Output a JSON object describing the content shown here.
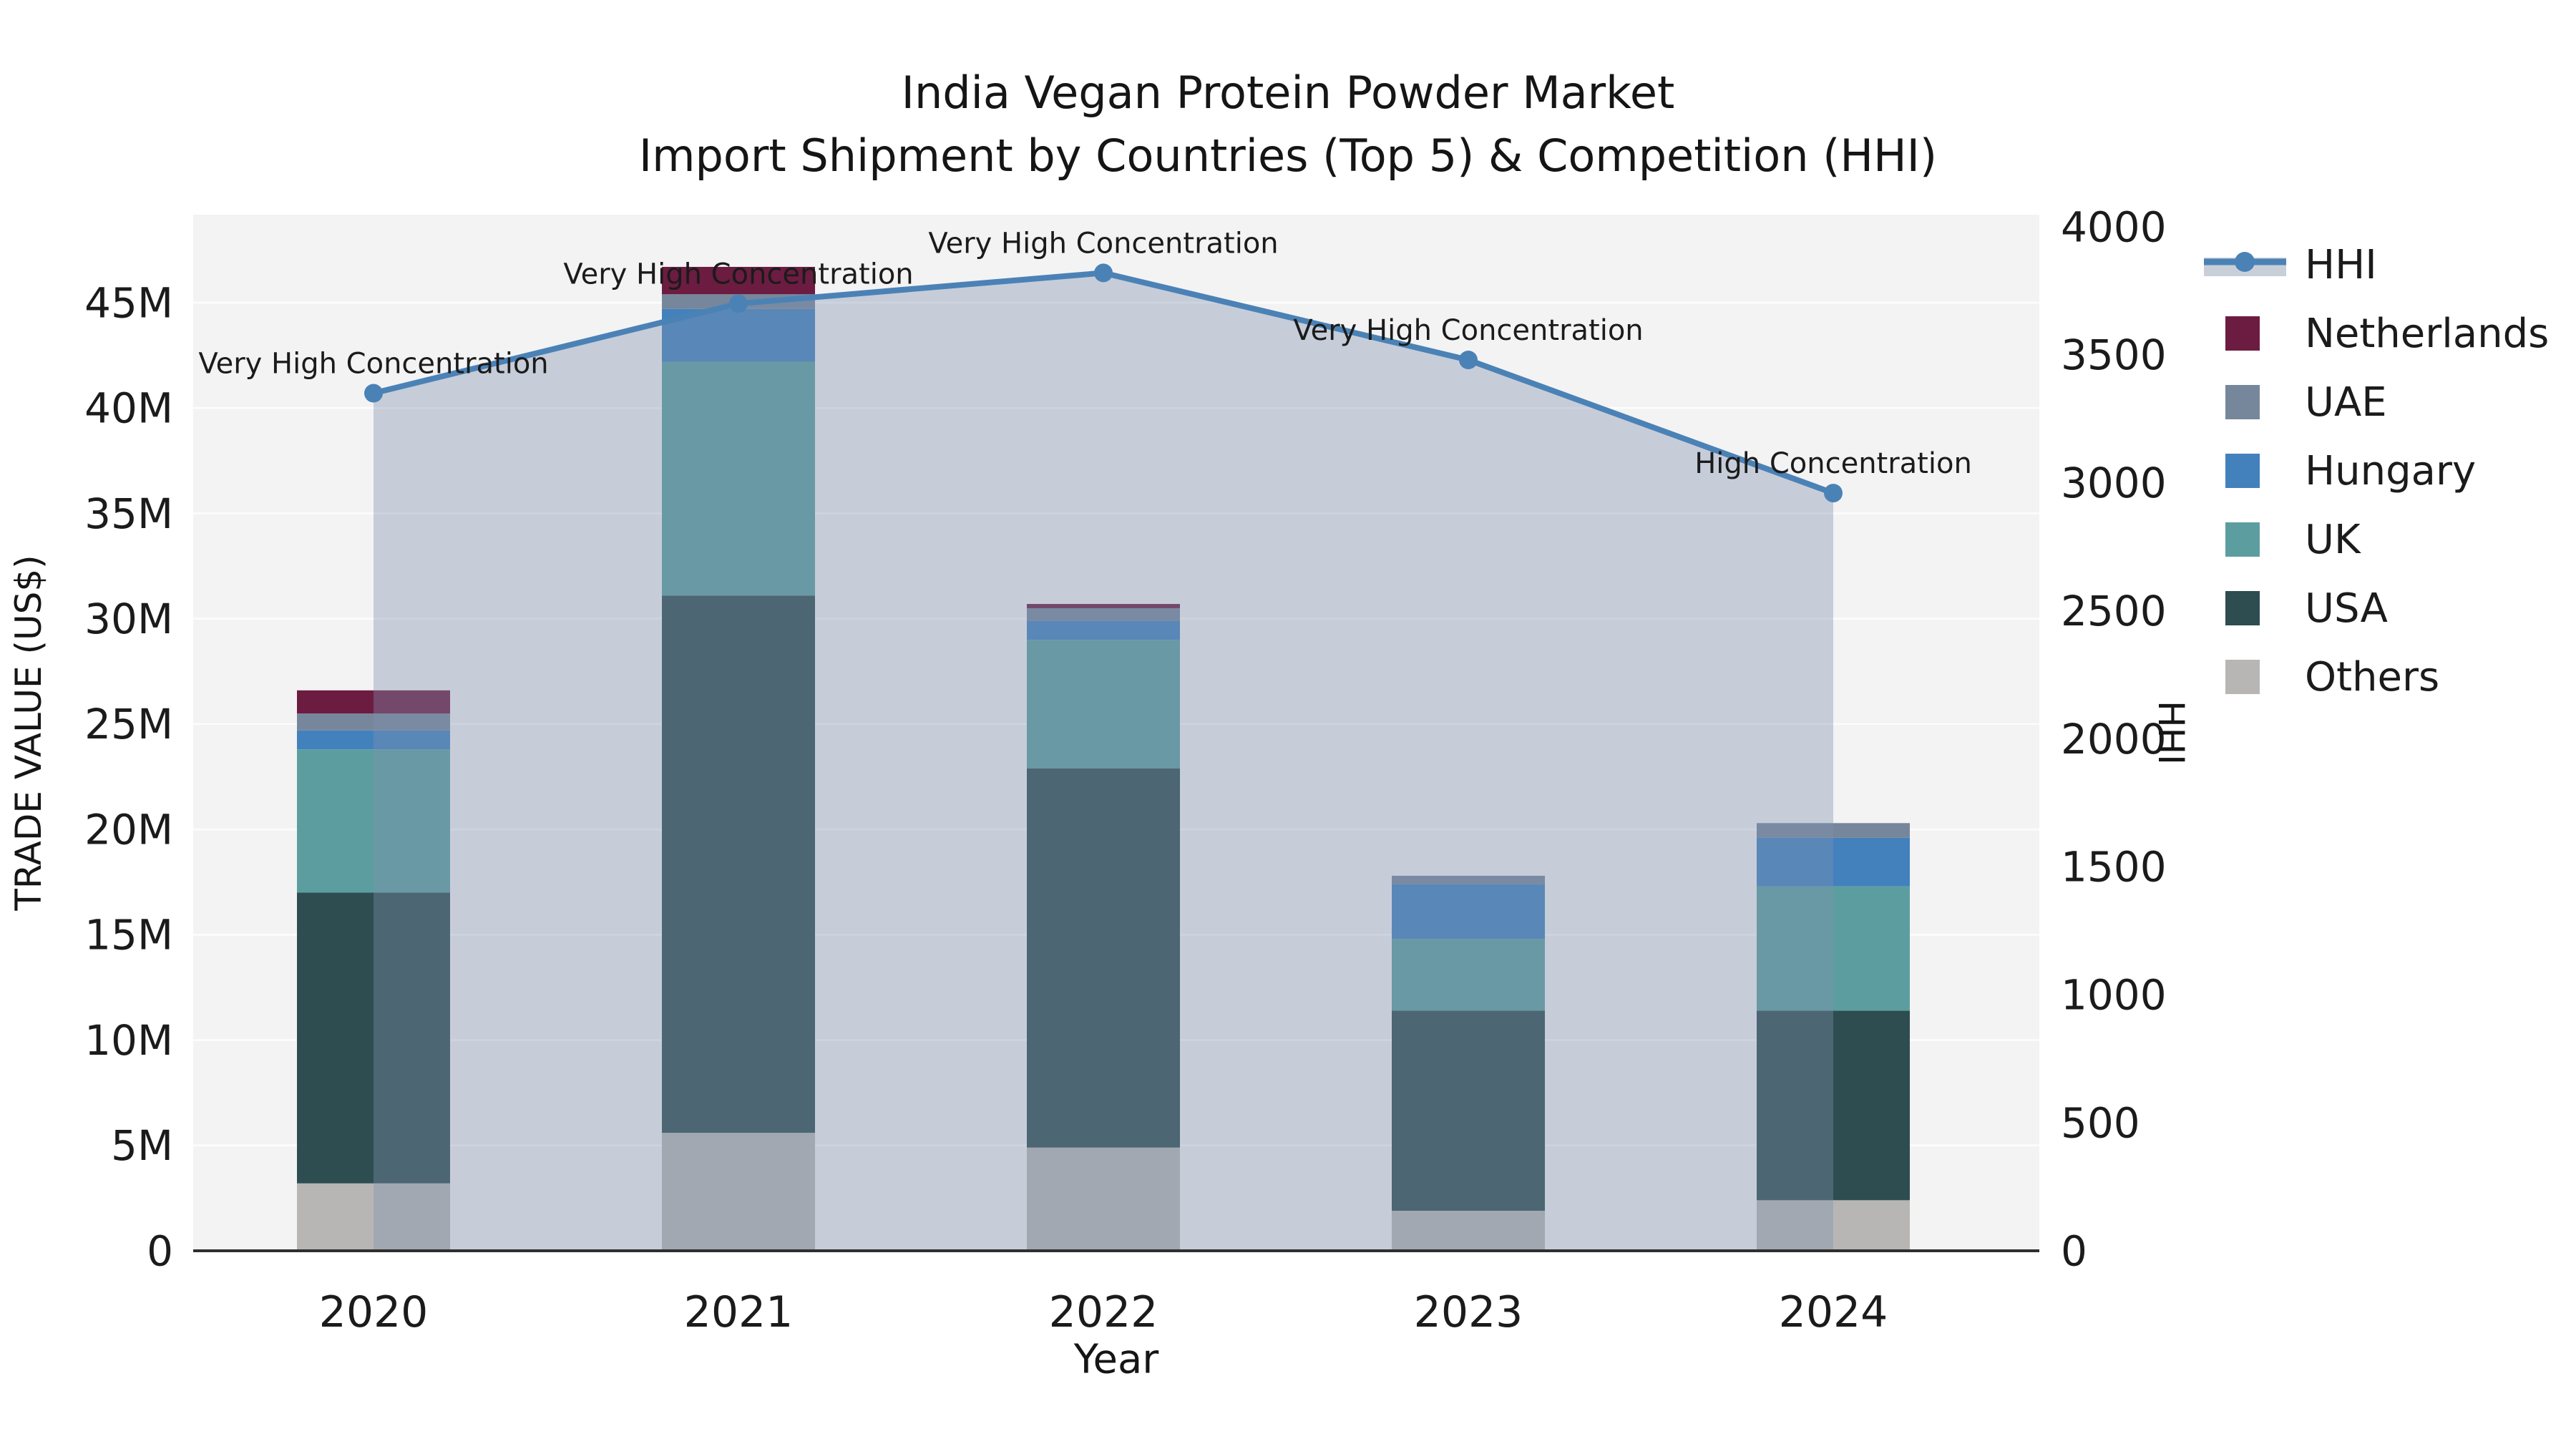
{
  "title": {
    "line1": "India Vegan Protein Powder Market",
    "line2": "Import Shipment by Countries (Top 5) & Competition (HHI)"
  },
  "axes": {
    "x_label": "Year",
    "y_left_label": "TRADE VALUE (US$)",
    "y_right_label": "HHI",
    "x_ticks": [
      "2020",
      "2021",
      "2022",
      "2023",
      "2024"
    ],
    "y_left_ticks": [
      {
        "value": 0,
        "label": "0"
      },
      {
        "value": 5,
        "label": "5M"
      },
      {
        "value": 10,
        "label": "10M"
      },
      {
        "value": 15,
        "label": "15M"
      },
      {
        "value": 20,
        "label": "20M"
      },
      {
        "value": 25,
        "label": "25M"
      },
      {
        "value": 30,
        "label": "30M"
      },
      {
        "value": 35,
        "label": "35M"
      },
      {
        "value": 40,
        "label": "40M"
      },
      {
        "value": 45,
        "label": "45M"
      }
    ],
    "y_right_ticks": [
      {
        "value": 0,
        "label": "0"
      },
      {
        "value": 500,
        "label": "500"
      },
      {
        "value": 1000,
        "label": "1000"
      },
      {
        "value": 1500,
        "label": "1500"
      },
      {
        "value": 2000,
        "label": "2000"
      },
      {
        "value": 2500,
        "label": "2500"
      },
      {
        "value": 3000,
        "label": "3000"
      },
      {
        "value": 3500,
        "label": "3500"
      },
      {
        "value": 4000,
        "label": "4000"
      }
    ]
  },
  "colors": {
    "plot_background": "#f3f3f4",
    "gridline": "#ffffff",
    "axis_spine": "#2f2f2f",
    "text": "#1b1b1b",
    "hhi_line": "#4b82b6",
    "hhi_area_fill": "rgba(126,144,173,0.38)",
    "hhi_area_legend": "#c9cfd9"
  },
  "legend": {
    "items": [
      {
        "label": "HHI",
        "type": "line",
        "color": "#4b82b6"
      },
      {
        "label": "Netherlands",
        "type": "square",
        "color": "#6c1c41"
      },
      {
        "label": "UAE",
        "type": "square",
        "color": "#76879b"
      },
      {
        "label": "Hungary",
        "type": "square",
        "color": "#4381bd"
      },
      {
        "label": "UK",
        "type": "square",
        "color": "#5c9ea0"
      },
      {
        "label": "USA",
        "type": "square",
        "color": "#2e4d50"
      },
      {
        "label": "Others",
        "type": "square",
        "color": "#b7b6b4"
      }
    ]
  },
  "chart_data": {
    "type": "stacked_bar_with_line",
    "title": "India Vegan Protein Powder Market — Import Shipment by Countries (Top 5) & Competition (HHI)",
    "xlabel": "Year",
    "ylabel_left": "TRADE VALUE (US$)",
    "ylabel_right": "HHI",
    "categories": [
      "2020",
      "2021",
      "2022",
      "2023",
      "2024"
    ],
    "bar_unit": "US$ millions",
    "ylim_left": [
      0,
      45
    ],
    "ylim_right": [
      0,
      4000
    ],
    "grid": "horizontal gridlines at 5M steps",
    "legend_position": "right",
    "series": [
      {
        "name": "Others",
        "color": "#b7b6b4",
        "values": [
          3.2,
          5.6,
          4.9,
          1.9,
          2.4
        ]
      },
      {
        "name": "USA",
        "color": "#2e4d50",
        "values": [
          13.8,
          25.5,
          18.0,
          9.5,
          9.0
        ]
      },
      {
        "name": "UK",
        "color": "#5c9ea0",
        "values": [
          6.8,
          11.1,
          6.1,
          3.4,
          5.9
        ]
      },
      {
        "name": "Hungary",
        "color": "#4381bd",
        "values": [
          0.9,
          2.5,
          0.9,
          2.6,
          2.3
        ]
      },
      {
        "name": "UAE",
        "color": "#76879b",
        "values": [
          0.8,
          0.7,
          0.6,
          0.4,
          0.7
        ]
      },
      {
        "name": "Netherlands",
        "color": "#6c1c41",
        "values": [
          1.1,
          1.3,
          0.2,
          0,
          0
        ]
      }
    ],
    "bar_totals": [
      26.6,
      46.7,
      30.7,
      17.8,
      20.3
    ],
    "line_series": {
      "name": "HHI",
      "axis": "right",
      "color": "#4b82b6",
      "area_fill": "rgba(126,144,173,0.38)",
      "values": [
        3350,
        3700,
        3820,
        3480,
        2960
      ]
    },
    "annotations": [
      {
        "category": "2020",
        "text": "Very High Concentration"
      },
      {
        "category": "2021",
        "text": "Very High Concentration"
      },
      {
        "category": "2022",
        "text": "Very High Concentration"
      },
      {
        "category": "2023",
        "text": "Very High Concentration"
      },
      {
        "category": "2024",
        "text": "High Concentration"
      }
    ]
  }
}
